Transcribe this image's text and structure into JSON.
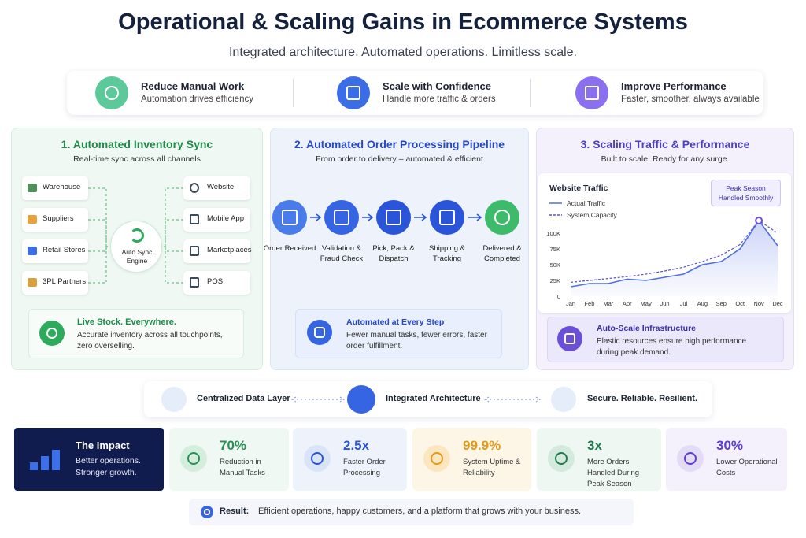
{
  "header": {
    "title": "Operational & Scaling Gains in Ecommerce Systems",
    "subtitle": "Integrated architecture. Automated operations. Limitless scale."
  },
  "highlights": [
    {
      "title": "Reduce Manual Work",
      "text": "Automation drives efficiency"
    },
    {
      "title": "Scale with Confidence",
      "text": "Handle more traffic & orders"
    },
    {
      "title": "Improve Performance",
      "text": "Faster, smoother, always available"
    }
  ],
  "panels": [
    {
      "title": "1. Automated Inventory Sync",
      "subtitle": "Real-time sync across all channels",
      "sources": [
        "Warehouse",
        "Suppliers",
        "Retail Stores",
        "3PL Partners"
      ],
      "hub": "Auto Sync Engine",
      "channels": [
        "Website",
        "Mobile App",
        "Marketplaces",
        "POS"
      ],
      "callout": {
        "title": "Live Stock. Everywhere.",
        "text": "Accurate inventory across all touchpoints, zero overselling."
      }
    },
    {
      "title": "2. Automated Order Processing Pipeline",
      "subtitle": "From order to delivery – automated & efficient",
      "steps": [
        "Order Received",
        "Validation & Fraud Check",
        "Pick, Pack & Dispatch",
        "Shipping & Tracking",
        "Delivered & Completed"
      ],
      "callout": {
        "title": "Automated at Every Step",
        "text": "Fewer manual tasks, fewer errors, faster order fulfillment."
      }
    },
    {
      "title": "3. Scaling Traffic & Performance",
      "subtitle": "Built to scale. Ready for any surge.",
      "callout": {
        "title": "Auto-Scale Infrastructure",
        "text": "Elastic resources ensure high performance during peak demand."
      }
    }
  ],
  "chart_data": {
    "type": "line",
    "title": "Website Traffic",
    "annotation": "Peak Season Handled Smoothly",
    "categories": [
      "Jan",
      "Feb",
      "Mar",
      "Apr",
      "May",
      "Jun",
      "Jul",
      "Aug",
      "Sep",
      "Oct",
      "Nov",
      "Dec"
    ],
    "series": [
      {
        "name": "Actual Traffic",
        "color": "#4f6fe0",
        "dashed": false,
        "values": [
          15000,
          20000,
          20000,
          27000,
          25000,
          30000,
          35000,
          50000,
          55000,
          75000,
          120000,
          80000
        ]
      },
      {
        "name": "System Capacity",
        "color": "#5b4fd0",
        "dashed": true,
        "values": [
          22000,
          25000,
          28000,
          31000,
          35000,
          40000,
          46000,
          55000,
          65000,
          82000,
          120000,
          100000
        ]
      }
    ],
    "ylim": [
      0,
      130000
    ],
    "yticks": [
      0,
      {
        "value": 25000,
        "label": "25K"
      },
      {
        "value": 50000,
        "label": "50K"
      },
      {
        "value": 75000,
        "label": "75K"
      },
      {
        "value": 100000,
        "label": "100K"
      }
    ]
  },
  "architecture": [
    "Centralized Data Layer",
    "Integrated Architecture",
    "Secure. Reliable. Resilient."
  ],
  "impact": {
    "title": "The Impact",
    "text": "Better operations. Stronger growth."
  },
  "metrics": [
    {
      "value": "70%",
      "label": "Reduction in Manual Tasks"
    },
    {
      "value": "2.5x",
      "label": "Faster Order Processing"
    },
    {
      "value": "99.9%",
      "label": "System Uptime & Reliability"
    },
    {
      "value": "3x",
      "label": "More Orders Handled During Peak Season"
    },
    {
      "value": "30%",
      "label": "Lower Operational Costs"
    }
  ],
  "result": {
    "label": "Result:",
    "text": "Efficient operations, happy customers, and a platform that grows with your business."
  }
}
